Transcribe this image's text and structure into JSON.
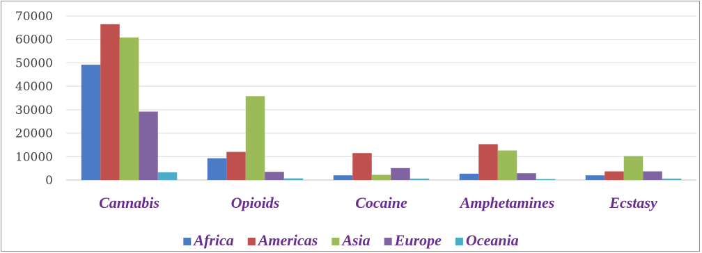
{
  "chart_data": {
    "type": "bar",
    "categories": [
      "Cannabis",
      "Opioids",
      "Cocaine",
      "Amphetamines",
      "Ecstasy"
    ],
    "series": [
      {
        "name": "Africa",
        "color": "#4a7bc4",
        "values": [
          49200,
          9300,
          2000,
          2700,
          2000
        ]
      },
      {
        "name": "Americas",
        "color": "#c0504d",
        "values": [
          66500,
          12000,
          11500,
          15300,
          3700
        ]
      },
      {
        "name": "Asia",
        "color": "#9bbb59",
        "values": [
          60800,
          35800,
          2200,
          12600,
          10200
        ]
      },
      {
        "name": "Europe",
        "color": "#8064a2",
        "values": [
          29200,
          3500,
          5100,
          2900,
          3700
        ]
      },
      {
        "name": "Oceania",
        "color": "#4bacc6",
        "values": [
          3300,
          700,
          600,
          400,
          600
        ]
      }
    ],
    "yticks": [
      "0",
      "10000",
      "20000",
      "30000",
      "40000",
      "50000",
      "60000",
      "70000"
    ],
    "ylim": [
      0,
      70000
    ],
    "grid": true,
    "legend": "bottom",
    "category_color": "#6a2c91",
    "legend_text_color": "#6a2c91"
  }
}
